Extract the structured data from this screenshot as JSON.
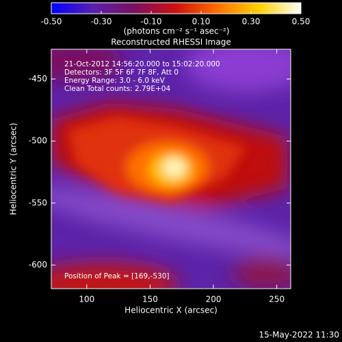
{
  "chart_data": {
    "type": "image",
    "title": "Reconstructed RHESSI Image",
    "x_label": "Heliocentric X (arcsec)",
    "y_label": "Heliocentric Y (arcsec)",
    "xlim": [
      72,
      261
    ],
    "xticks": [
      100,
      150,
      200,
      250
    ],
    "ylim": [
      -619,
      -426
    ],
    "yticks": [
      -450,
      -500,
      -550,
      -600
    ],
    "colorbar": {
      "label": "(photons cm⁻² s⁻¹ asec⁻²)",
      "lim": [
        -0.5,
        0.5
      ],
      "ticks": [
        {
          "value": -0.5,
          "label": "-0.50"
        },
        {
          "value": -0.3,
          "label": "-0.30"
        },
        {
          "value": -0.1,
          "label": "-0.10"
        },
        {
          "value": 0.1,
          "label": "0.10"
        },
        {
          "value": 0.3,
          "label": "0.30"
        },
        {
          "value": 0.5,
          "label": "0.50"
        }
      ],
      "colors": [
        "#0000ff",
        "#5a1fb0",
        "#7a1060",
        "#d01010",
        "#ff7000",
        "#ffd000",
        "#ffffff"
      ]
    },
    "annotations": [
      "21-Oct-2012 14:56:20.000 to 15:02:20.000",
      "Detectors: 3F 5F 6F 7F 8F, Att 0",
      "Energy Range: 3.0 - 6.0 keV",
      "Clean     Total counts: 2.79E+04"
    ],
    "peak_label": "Position of Peak = [169,-530]",
    "footer": "15-May-2022 11:30"
  }
}
